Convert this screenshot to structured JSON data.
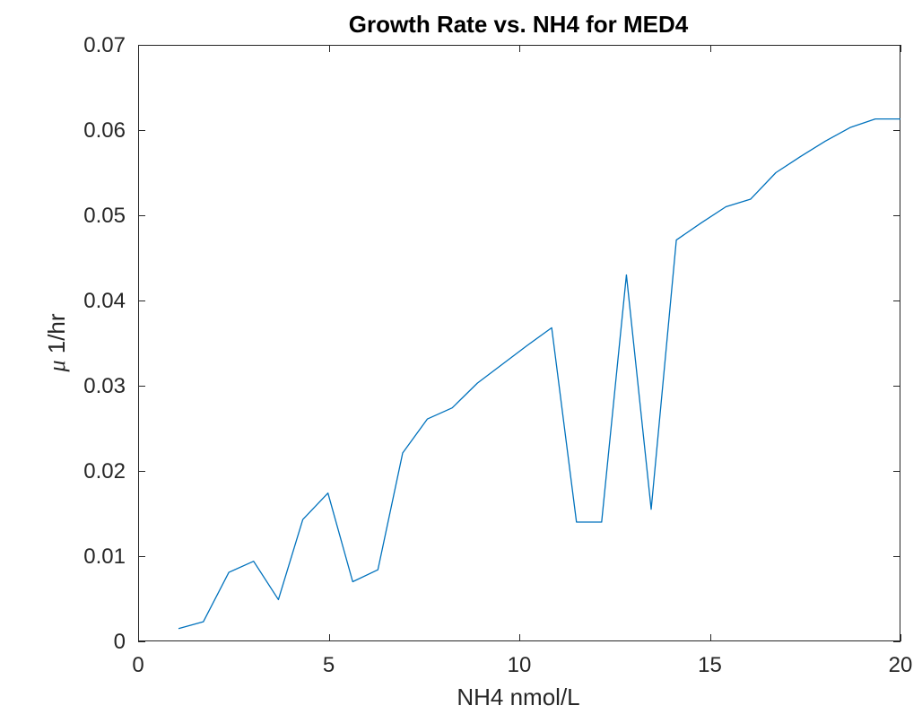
{
  "chart_data": {
    "type": "line",
    "title": "Growth Rate vs. NH4 for MED4",
    "xlabel": "NH4 nmol/L",
    "ylabel_symbol": "μ",
    "ylabel_unit": "1/hr",
    "xlim": [
      0,
      20
    ],
    "ylim": [
      0,
      0.07
    ],
    "xticks": [
      0,
      5,
      10,
      15,
      20
    ],
    "xtick_labels": [
      "0",
      "5",
      "10",
      "15",
      "20"
    ],
    "yticks": [
      0,
      0.01,
      0.02,
      0.03,
      0.04,
      0.05,
      0.06,
      0.07
    ],
    "ytick_labels": [
      "0",
      "0.01",
      "0.02",
      "0.03",
      "0.04",
      "0.05",
      "0.06",
      "0.07"
    ],
    "grid": false,
    "box": true,
    "series": [
      {
        "color": "#0072BD",
        "x": [
          1.06,
          1.71,
          2.38,
          3.03,
          3.68,
          4.32,
          4.98,
          5.63,
          6.29,
          6.94,
          7.59,
          8.24,
          8.9,
          9.55,
          10.2,
          10.85,
          11.5,
          12.16,
          12.81,
          13.46,
          14.12,
          14.77,
          15.42,
          16.07,
          16.73,
          17.38,
          18.03,
          18.68,
          19.34,
          20.0
        ],
        "y": [
          0.0015,
          0.0023,
          0.0081,
          0.0094,
          0.0049,
          0.0143,
          0.0174,
          0.007,
          0.0084,
          0.0221,
          0.0261,
          0.0274,
          0.0303,
          0.0325,
          0.0347,
          0.0368,
          0.014,
          0.014,
          0.043,
          0.0155,
          0.0471,
          0.0491,
          0.051,
          0.0519,
          0.055,
          0.0569,
          0.0587,
          0.0603,
          0.0613,
          0.0613
        ]
      }
    ]
  }
}
